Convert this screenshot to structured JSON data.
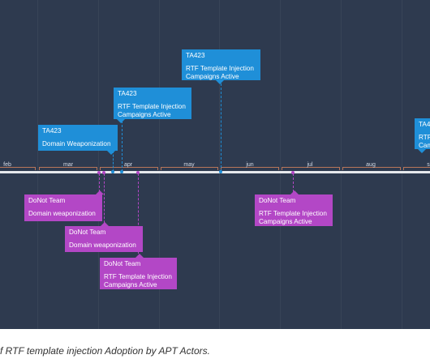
{
  "colors": {
    "background": "#2e3a4f",
    "axis": "#e6e8ec",
    "blue_card": "#1f8fd8",
    "purple_card": "#b347c6",
    "caption": "#333333"
  },
  "timeline": {
    "months": [
      "feb",
      "mar",
      "apr",
      "may",
      "jun",
      "jul",
      "aug",
      "s"
    ]
  },
  "events_above": [
    {
      "actor": "TA423",
      "text": "Domain Weaponization"
    },
    {
      "actor": "TA423",
      "text": "RTF Template Injection Campaigns Active"
    },
    {
      "actor": "TA423",
      "text": "RTF Template Injection Campaigns Active"
    },
    {
      "actor": "TA4",
      "text": "RTF Cam"
    }
  ],
  "events_below": [
    {
      "actor": "DoNot Team",
      "text": "Domain weaponization"
    },
    {
      "actor": "DoNot Team",
      "text": "Domain weaponization"
    },
    {
      "actor": "DoNot Team",
      "text": "RTF Template Injection Campaigns Active"
    },
    {
      "actor": "DoNot Team",
      "text": "RTF Template Injection Campaigns Active"
    }
  ],
  "caption": "f RTF template injection Adoption by APT Actors."
}
